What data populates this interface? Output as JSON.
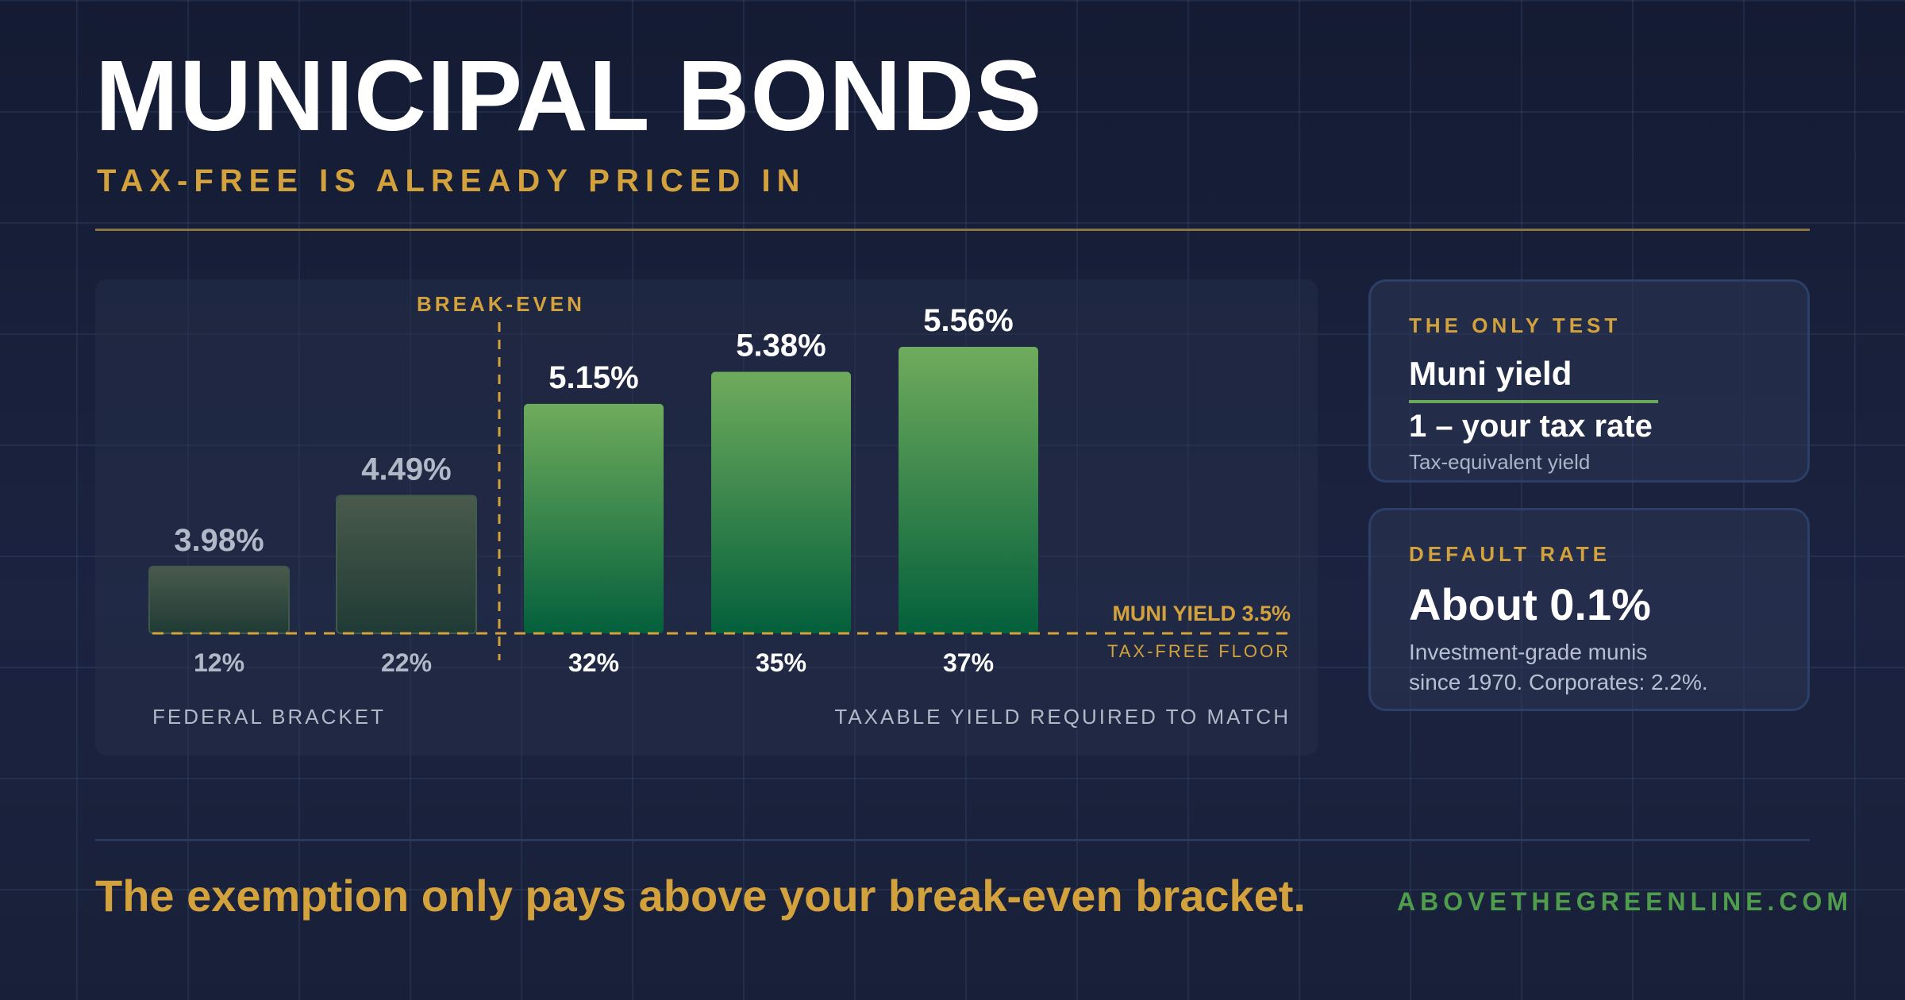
{
  "header": {
    "title": "MUNICIPAL BONDS",
    "subtitle": "TAX-FREE IS ALREADY PRICED IN"
  },
  "chart_data": {
    "type": "bar",
    "categories": [
      "12%",
      "22%",
      "32%",
      "35%",
      "37%"
    ],
    "values": [
      3.98,
      4.49,
      5.15,
      5.38,
      5.56
    ],
    "value_labels": [
      "3.98%",
      "4.49%",
      "5.15%",
      "5.38%",
      "5.56%"
    ],
    "xlabel": "FEDERAL BRACKET",
    "ylabel": "TAXABLE YIELD REQUIRED TO MATCH",
    "ylim": [
      3.5,
      5.6
    ],
    "grid": false,
    "reference_line": {
      "value": 3.5,
      "label": "MUNI YIELD 3.5%",
      "sublabel": "TAX-FREE FLOOR"
    },
    "break_even": {
      "after_category": "22%",
      "label": "BREAK-EVEN"
    },
    "below_break_even_style": "muted",
    "above_break_even_style": "highlighted"
  },
  "cards": {
    "only_test": {
      "label": "THE ONLY TEST",
      "numerator": "Muni yield",
      "denominator": "1 – your tax rate",
      "note": "Tax-equivalent yield"
    },
    "default_rate": {
      "label": "DEFAULT RATE",
      "value": "About 0.1%",
      "desc_line1": "Investment-grade munis",
      "desc_line2": "since 1970. Corporates: 2.2%."
    }
  },
  "footer": {
    "tagline": "The exemption only pays above your break-even bracket.",
    "site": "ABOVETHEGREENLINE.COM"
  },
  "colors": {
    "accent_gold": "#d4a23c",
    "bar_green_top": "#6fab5c",
    "bar_green_bottom": "#03603c",
    "bar_muted_top": "#4a5a4c",
    "bar_muted_bottom": "#1f3b35",
    "label_muted": "#b1b9c8",
    "brand_green": "#4f9d4c"
  }
}
